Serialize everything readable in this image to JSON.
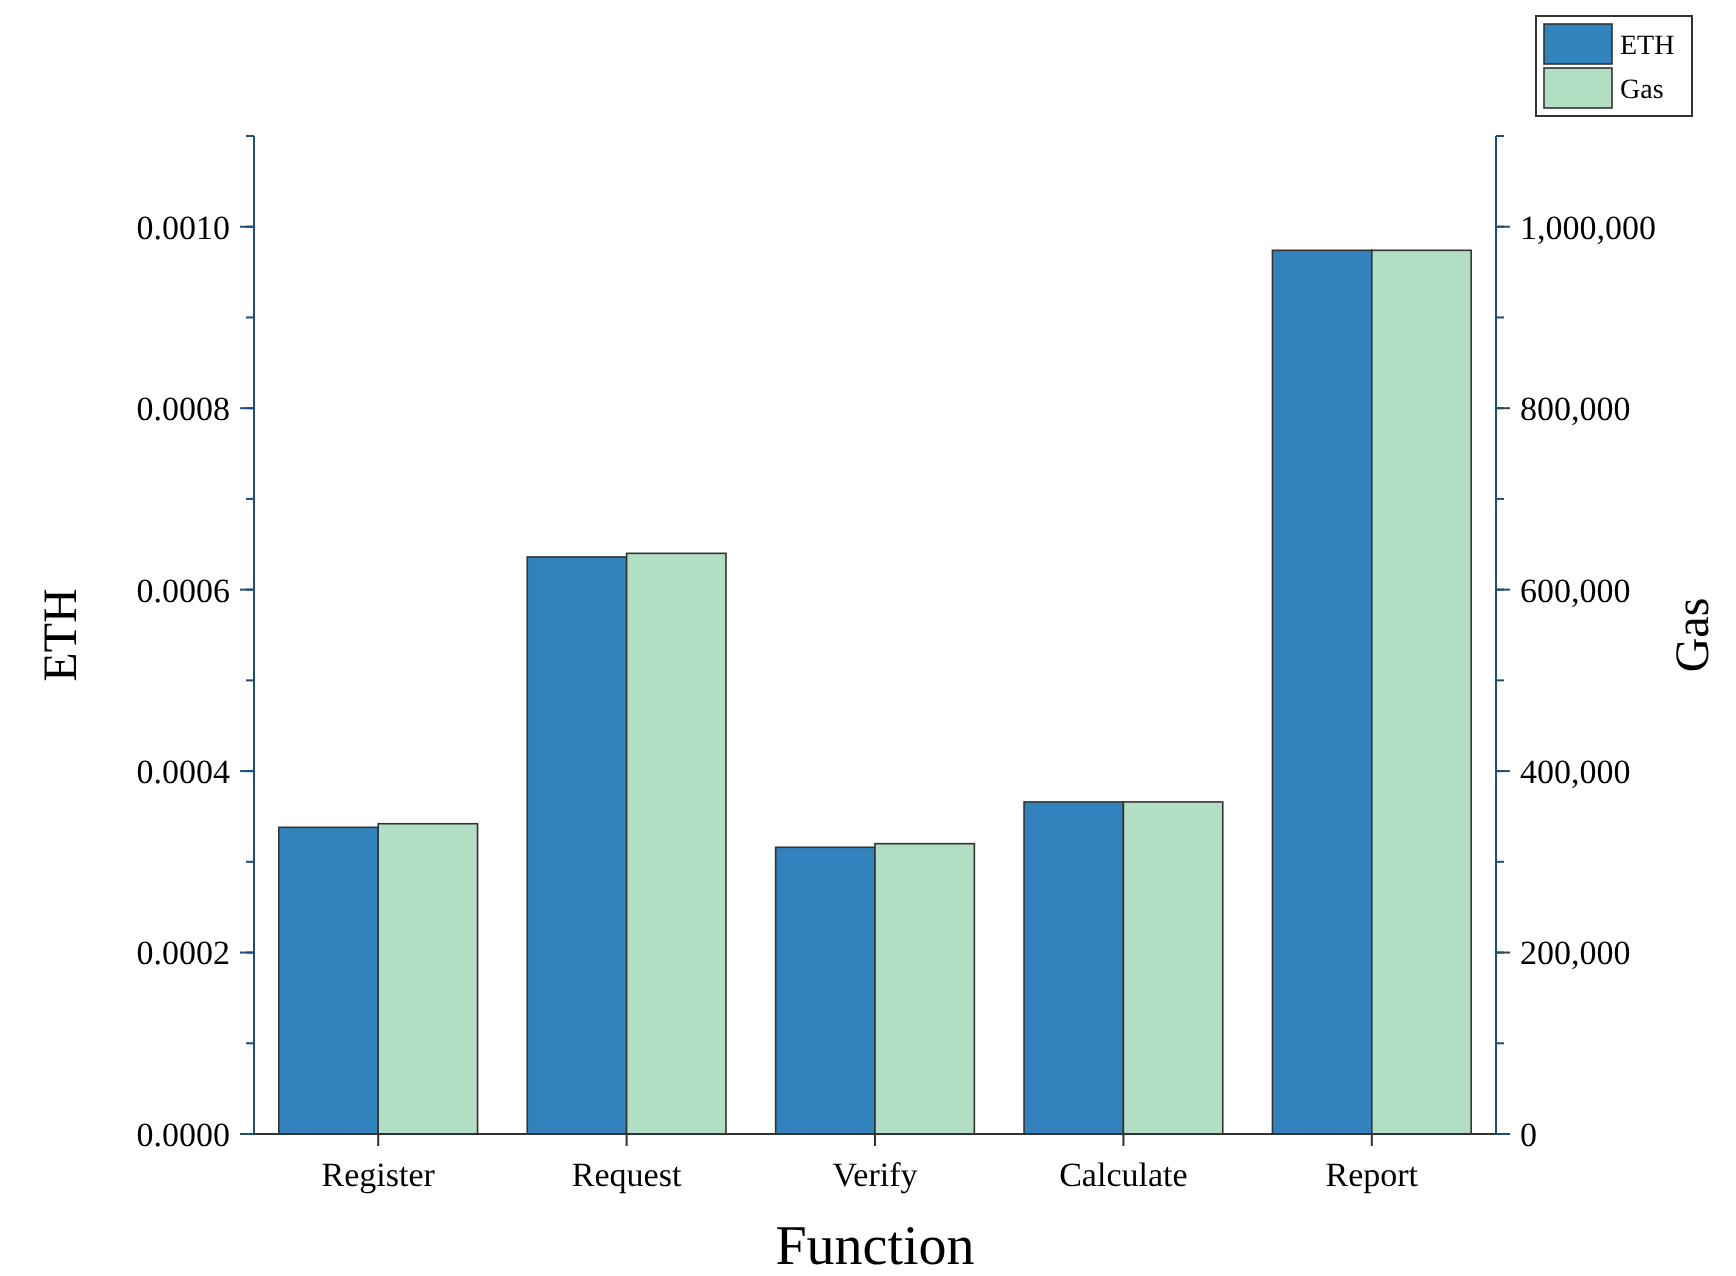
{
  "chart_data": {
    "type": "bar",
    "xlabel": "Function",
    "ylabel": "ETH",
    "y2label": "Gas",
    "categories": [
      "Register",
      "Request",
      "Verify",
      "Calculate",
      "Report"
    ],
    "series": [
      {
        "name": "ETH",
        "color": "#3182bd",
        "values": [
          0.000338,
          0.000636,
          0.000316,
          0.000366,
          0.000974
        ]
      },
      {
        "name": "Gas",
        "color": "#b2dfc3",
        "axis": "y2",
        "values": [
          342000,
          640000,
          320000,
          366000,
          974000
        ]
      }
    ],
    "ylim": [
      0,
      0.0011
    ],
    "yticks": [
      {
        "value": 0,
        "label": "0.0000"
      },
      {
        "value": 0.0002,
        "label": "0.0002"
      },
      {
        "value": 0.0004,
        "label": "0.0004"
      },
      {
        "value": 0.0006,
        "label": "0.0006"
      },
      {
        "value": 0.0008,
        "label": "0.0008"
      },
      {
        "value": 0.001,
        "label": "0.0010"
      }
    ],
    "y2lim": [
      0,
      1100000
    ],
    "y2ticks": [
      0,
      {
        "value": 200000,
        "label": "200,000"
      },
      {
        "value": 400000,
        "label": "400,000"
      },
      {
        "value": 600000,
        "label": "600,000"
      },
      {
        "value": 800000,
        "label": "800,000"
      },
      {
        "value": 1000000,
        "label": "1,000,000"
      }
    ],
    "legend": "top right",
    "grid": false
  }
}
